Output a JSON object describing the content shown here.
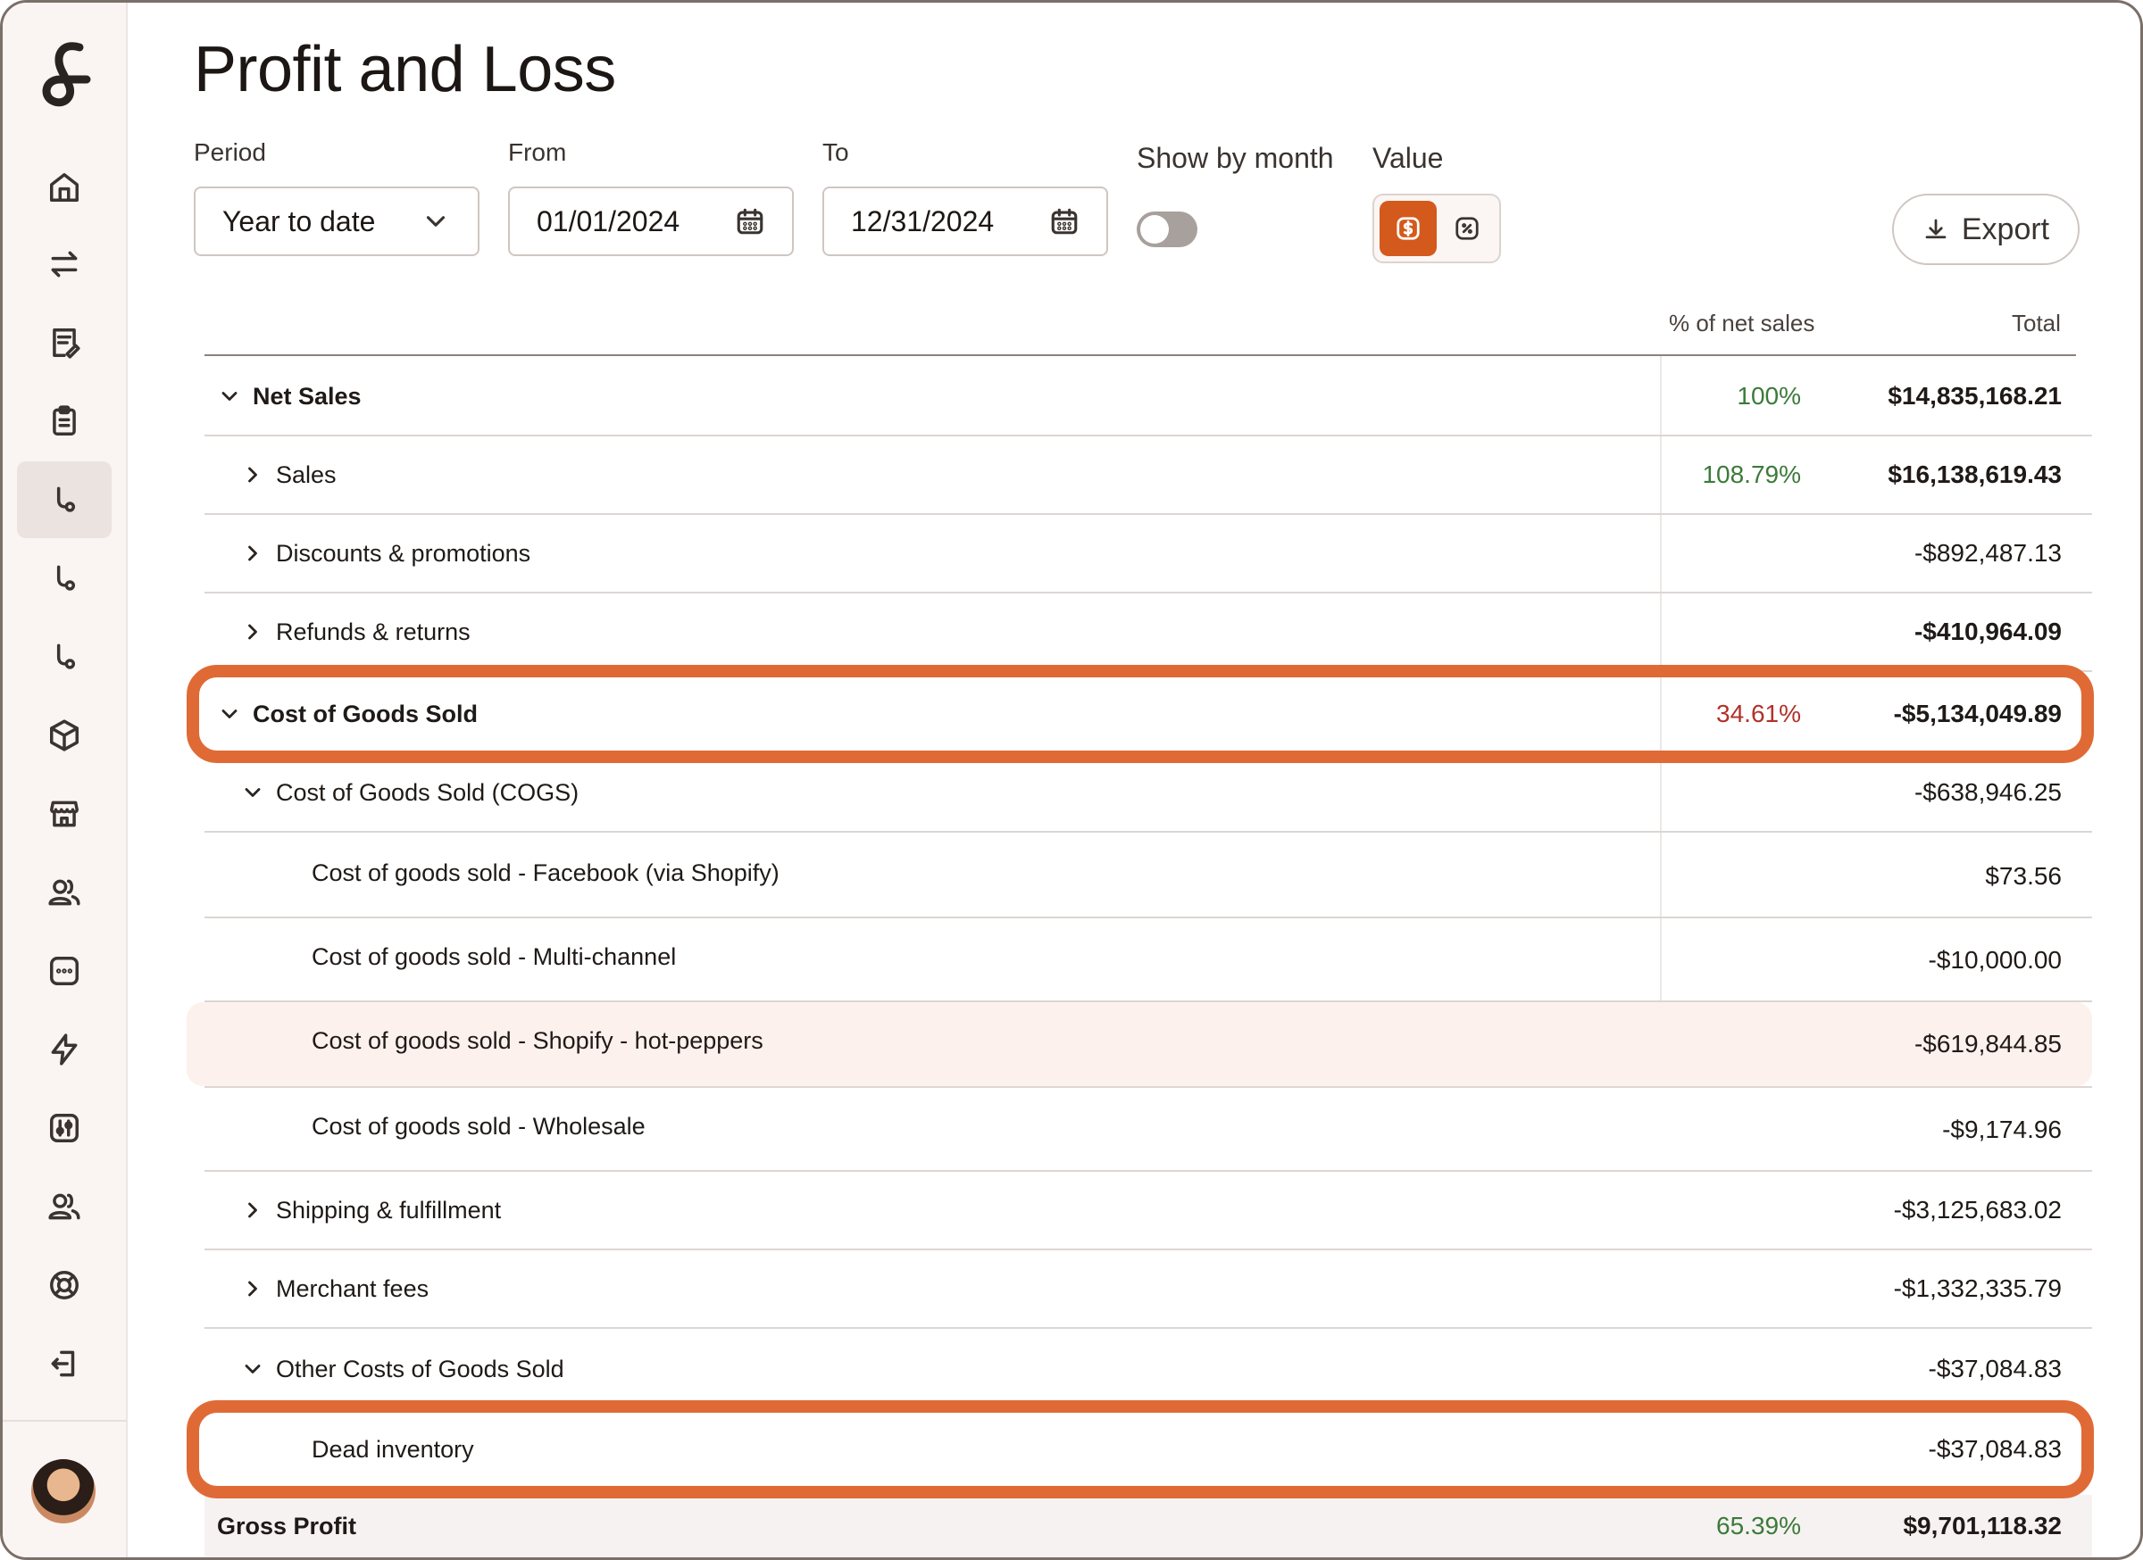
{
  "page": {
    "title": "Profit and Loss"
  },
  "filters": {
    "period_label": "Period",
    "period_value": "Year to date",
    "from_label": "From",
    "from_value": "01/01/2024",
    "to_label": "To",
    "to_value": "12/31/2024",
    "show_by_month_label": "Show by month",
    "show_by_month": false,
    "value_label": "Value",
    "value_mode": "dollar"
  },
  "toolbar": {
    "export_label": "Export"
  },
  "table": {
    "col_pct": "% of net sales",
    "col_total": "Total",
    "rows": [
      {
        "label": "Net Sales",
        "pct": "100%",
        "total": "$14,835,168.21"
      },
      {
        "label": "Sales",
        "pct": "108.79%",
        "total": "$16,138,619.43"
      },
      {
        "label": "Discounts & promotions",
        "pct": "",
        "total": "-$892,487.13"
      },
      {
        "label": "Refunds & returns",
        "pct": "",
        "total": "-$410,964.09"
      },
      {
        "label": "Cost of Goods Sold",
        "pct": "34.61%",
        "total": "-$5,134,049.89"
      },
      {
        "label": "Cost of Goods Sold (COGS)",
        "pct": "",
        "total": "-$638,946.25"
      },
      {
        "label": "Cost of goods sold - Facebook (via Shopify)",
        "pct": "",
        "total": "$73.56"
      },
      {
        "label": "Cost of goods sold - Multi-channel",
        "pct": "",
        "total": "-$10,000.00"
      },
      {
        "label": "Cost of goods sold - Shopify - hot-peppers",
        "pct": "",
        "total": "-$619,844.85"
      },
      {
        "label": "Cost of goods sold - Wholesale",
        "pct": "",
        "total": "-$9,174.96"
      },
      {
        "label": "Shipping & fulfillment",
        "pct": "",
        "total": "-$3,125,683.02"
      },
      {
        "label": "Merchant fees",
        "pct": "",
        "total": "-$1,332,335.79"
      },
      {
        "label": "Other Costs of Goods Sold",
        "pct": "",
        "total": "-$37,084.83"
      },
      {
        "label": "Dead inventory",
        "pct": "",
        "total": "-$37,084.83"
      },
      {
        "label": "Gross Profit",
        "pct": "65.39%",
        "total": "$9,701,118.32"
      }
    ]
  },
  "colors": {
    "accent": "#d4591c",
    "callout": "#e06a35",
    "positive_pct": "#3c7a3a",
    "negative_pct": "#b3302a"
  },
  "sidebar": {
    "icons": [
      "home-icon",
      "transfer-icon",
      "invoice-icon",
      "clipboard-icon",
      "branch-icon",
      "branch-icon",
      "branch-icon",
      "package-icon",
      "store-icon",
      "users-icon",
      "chat-icon",
      "bolt-icon",
      "sliders-icon",
      "users-icon",
      "lifebuoy-icon",
      "logout-icon"
    ]
  }
}
